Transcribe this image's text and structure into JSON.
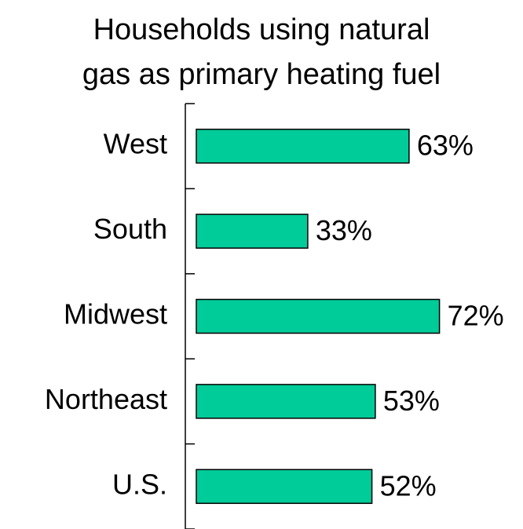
{
  "chart_data": {
    "type": "bar",
    "orientation": "horizontal",
    "title": [
      "Households using natural",
      "gas as primary heating fuel"
    ],
    "categories": [
      "West",
      "South",
      "Midwest",
      "Northeast",
      "U.S."
    ],
    "values": [
      63,
      33,
      72,
      53,
      52
    ],
    "value_labels": [
      "63%",
      "33%",
      "72%",
      "53%",
      "52%"
    ],
    "color": "#00cc99"
  }
}
